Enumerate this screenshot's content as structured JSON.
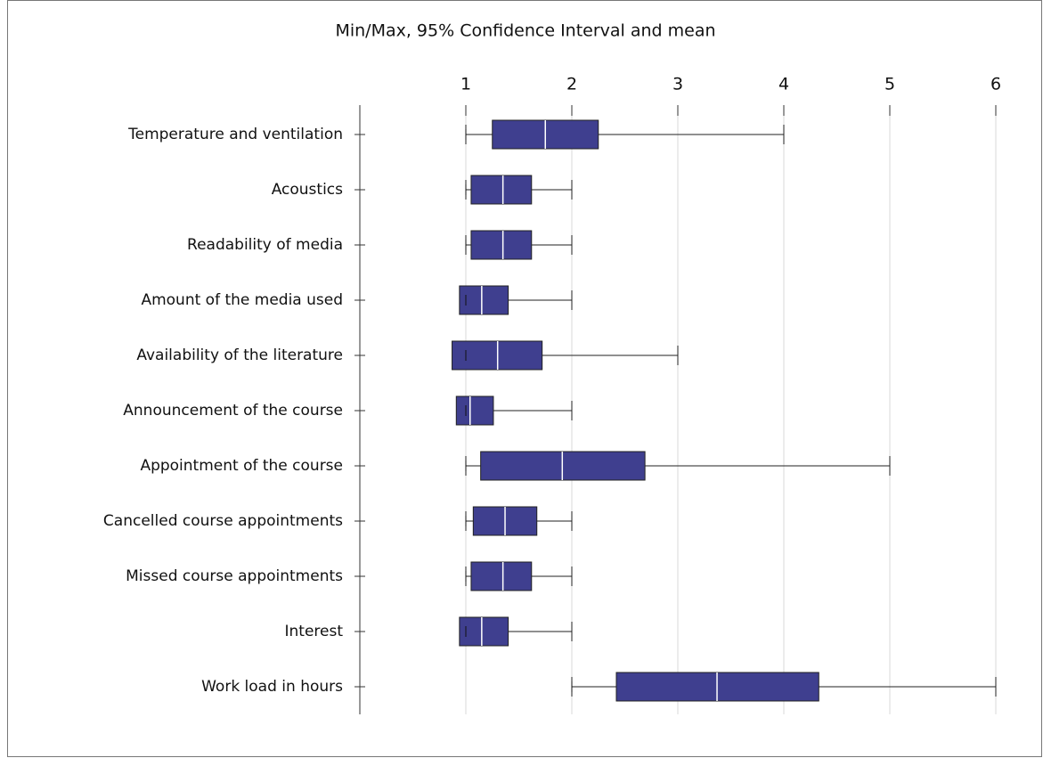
{
  "chart_data": {
    "type": "box",
    "title": "Min/Max, 95% Confidence Interval and mean",
    "categories": [
      "Temperature and ventilation",
      "Acoustics",
      "Readability of media",
      "Amount of the media used",
      "Availability of the literature",
      "Announcement of the course",
      "Appointment of the course",
      "Cancelled course appointments",
      "Missed course appointments",
      "Interest",
      "Work load in hours"
    ],
    "min": [
      1,
      1,
      1,
      1,
      1,
      1,
      1,
      1,
      1,
      1,
      2
    ],
    "max": [
      4,
      2,
      2,
      2,
      3,
      2,
      5,
      2,
      2,
      2,
      6
    ],
    "ci_low": [
      1.25,
      1.05,
      1.05,
      0.94,
      0.87,
      0.91,
      1.14,
      1.07,
      1.05,
      0.94,
      2.42
    ],
    "ci_high": [
      2.25,
      1.62,
      1.62,
      1.4,
      1.72,
      1.26,
      2.69,
      1.67,
      1.62,
      1.4,
      4.33
    ],
    "mean": [
      1.75,
      1.35,
      1.35,
      1.15,
      1.3,
      1.04,
      1.91,
      1.37,
      1.35,
      1.15,
      3.37
    ],
    "color": "#3f3f8f",
    "xlim": [
      0,
      6
    ],
    "xticks": [
      1,
      2,
      3,
      4,
      5,
      6
    ],
    "grid": true
  }
}
